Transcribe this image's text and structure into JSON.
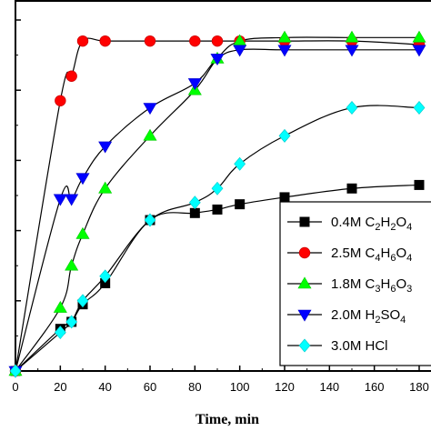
{
  "chart_data": {
    "type": "line",
    "title": "",
    "xlabel": "Time, min",
    "ylabel": "",
    "xlim": [
      0,
      185
    ],
    "ylim": [
      0,
      105
    ],
    "x_ticks": [
      0,
      20,
      40,
      60,
      80,
      100,
      120,
      140,
      160,
      180
    ],
    "y_ticks": [
      0,
      20,
      40,
      60,
      80,
      100
    ],
    "y_tick_labels_visible": false,
    "grid": false,
    "legend_position": "right",
    "series": [
      {
        "name": "0.4M C2H2O4",
        "legend_parts": [
          [
            "0.4M C",
            false
          ],
          [
            "2",
            true
          ],
          [
            "H",
            false
          ],
          [
            "2",
            true
          ],
          [
            "O",
            false
          ],
          [
            "4",
            true
          ]
        ],
        "color": "#000000",
        "marker": "square",
        "x": [
          0,
          20,
          25,
          30,
          40,
          60,
          80,
          90,
          100,
          120,
          150,
          180
        ],
        "y": [
          0,
          12,
          14,
          19,
          25,
          43,
          45,
          46,
          47.5,
          49.5,
          52,
          53
        ]
      },
      {
        "name": "2.5M C4H6O4",
        "legend_parts": [
          [
            "2.5M C",
            false
          ],
          [
            "4",
            true
          ],
          [
            "H",
            false
          ],
          [
            "6",
            true
          ],
          [
            "O",
            false
          ],
          [
            "4",
            true
          ]
        ],
        "color": "#ff0000",
        "marker": "circle",
        "x": [
          0,
          20,
          25,
          30,
          40,
          60,
          80,
          90,
          100,
          120,
          150,
          180
        ],
        "y": [
          0,
          77,
          84,
          94,
          94,
          94,
          94,
          94,
          94,
          94,
          94,
          93
        ]
      },
      {
        "name": "1.8M C3H6O3",
        "legend_parts": [
          [
            "1.8M C",
            false
          ],
          [
            "3",
            true
          ],
          [
            "H",
            false
          ],
          [
            "6",
            true
          ],
          [
            "O",
            false
          ],
          [
            "3",
            true
          ]
        ],
        "color": "#00ff00",
        "marker": "triangle-up",
        "x": [
          0,
          20,
          25,
          30,
          40,
          60,
          80,
          90,
          100,
          120,
          150,
          180
        ],
        "y": [
          0,
          18,
          30,
          39,
          52,
          67,
          80,
          89,
          94,
          95,
          95,
          95
        ]
      },
      {
        "name": "2.0M H2SO4",
        "legend_parts": [
          [
            "2.0M H",
            false
          ],
          [
            "2",
            true
          ],
          [
            "SO",
            false
          ],
          [
            "4",
            true
          ]
        ],
        "color": "#0000ff",
        "marker": "triangle-down",
        "x": [
          0,
          20,
          25,
          30,
          40,
          60,
          80,
          90,
          100,
          120,
          150,
          180
        ],
        "y": [
          0,
          49,
          49,
          55,
          64,
          75,
          82,
          89,
          91.5,
          91.5,
          91.5,
          91.5
        ]
      },
      {
        "name": "3.0M HCl",
        "legend_parts": [
          [
            "3.0M HCl",
            false
          ]
        ],
        "color": "#00ffff",
        "marker": "diamond",
        "x": [
          0,
          20,
          25,
          30,
          40,
          60,
          80,
          90,
          100,
          120,
          150,
          180
        ],
        "y": [
          0,
          11,
          14,
          20,
          27,
          43,
          48,
          52,
          59,
          67,
          75,
          75
        ]
      }
    ]
  }
}
